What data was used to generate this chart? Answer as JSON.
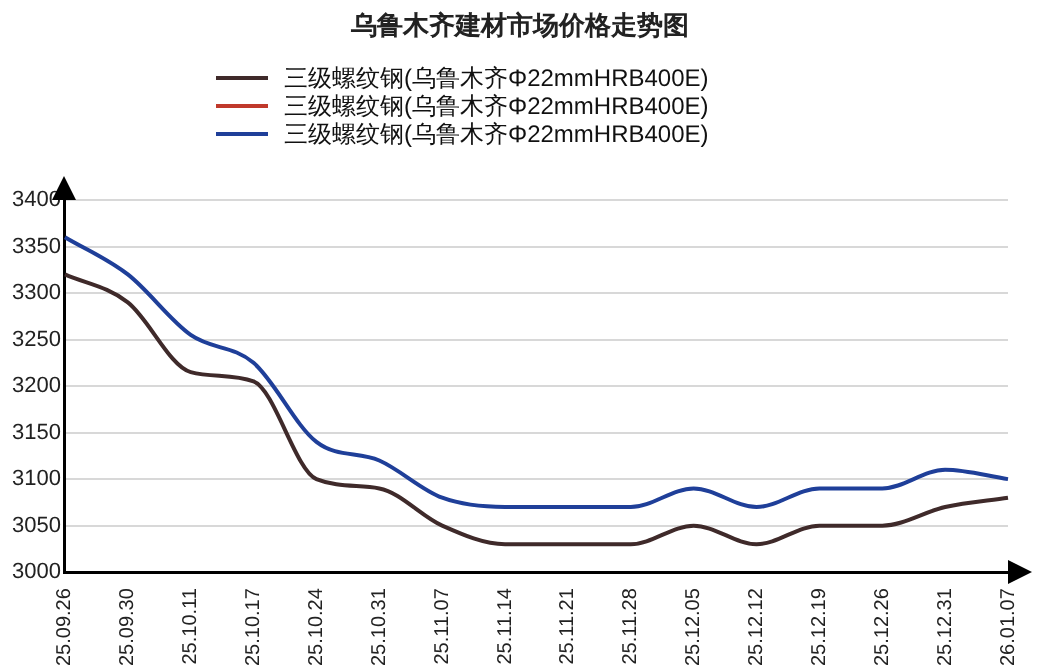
{
  "chart_data": {
    "type": "line",
    "title": "乌鲁木齐建材市场价格走势图",
    "categories": [
      "25.09.26",
      "25.09.30",
      "25.10.11",
      "25.10.17",
      "25.10.24",
      "25.10.31",
      "25.11.07",
      "25.11.14",
      "25.11.21",
      "25.11.28",
      "25.12.05",
      "25.12.12",
      "25.12.19",
      "25.12.26",
      "25.12.31",
      "26.01.07"
    ],
    "series": [
      {
        "name": "三级螺纹钢(乌鲁木齐Φ22mmHRB400E)",
        "color": "#3f2a2a",
        "values": [
          3320,
          3290,
          3215,
          3205,
          3100,
          3090,
          3050,
          3030,
          3030,
          3030,
          3050,
          3030,
          3050,
          3050,
          3070,
          3080
        ]
      },
      {
        "name": "三级螺纹钢(乌鲁木齐Φ22mmHRB400E)",
        "color": "#c0392b",
        "values": [
          null,
          null,
          null,
          null,
          null,
          null,
          null,
          null,
          null,
          null,
          null,
          null,
          null,
          null,
          null,
          null
        ]
      },
      {
        "name": "三级螺纹钢(乌鲁木齐Φ22mmHRB400E)",
        "color": "#1f3f99",
        "values": [
          3360,
          3320,
          3255,
          3225,
          3140,
          3120,
          3080,
          3070,
          3070,
          3070,
          3090,
          3070,
          3090,
          3090,
          3110,
          3100
        ]
      }
    ],
    "ylim": [
      3000,
      3400
    ],
    "yticks": [
      3000,
      3050,
      3100,
      3150,
      3200,
      3250,
      3300,
      3350,
      3400
    ],
    "grid": "y",
    "legend": "top",
    "marker": "none",
    "line_style": "solid"
  }
}
